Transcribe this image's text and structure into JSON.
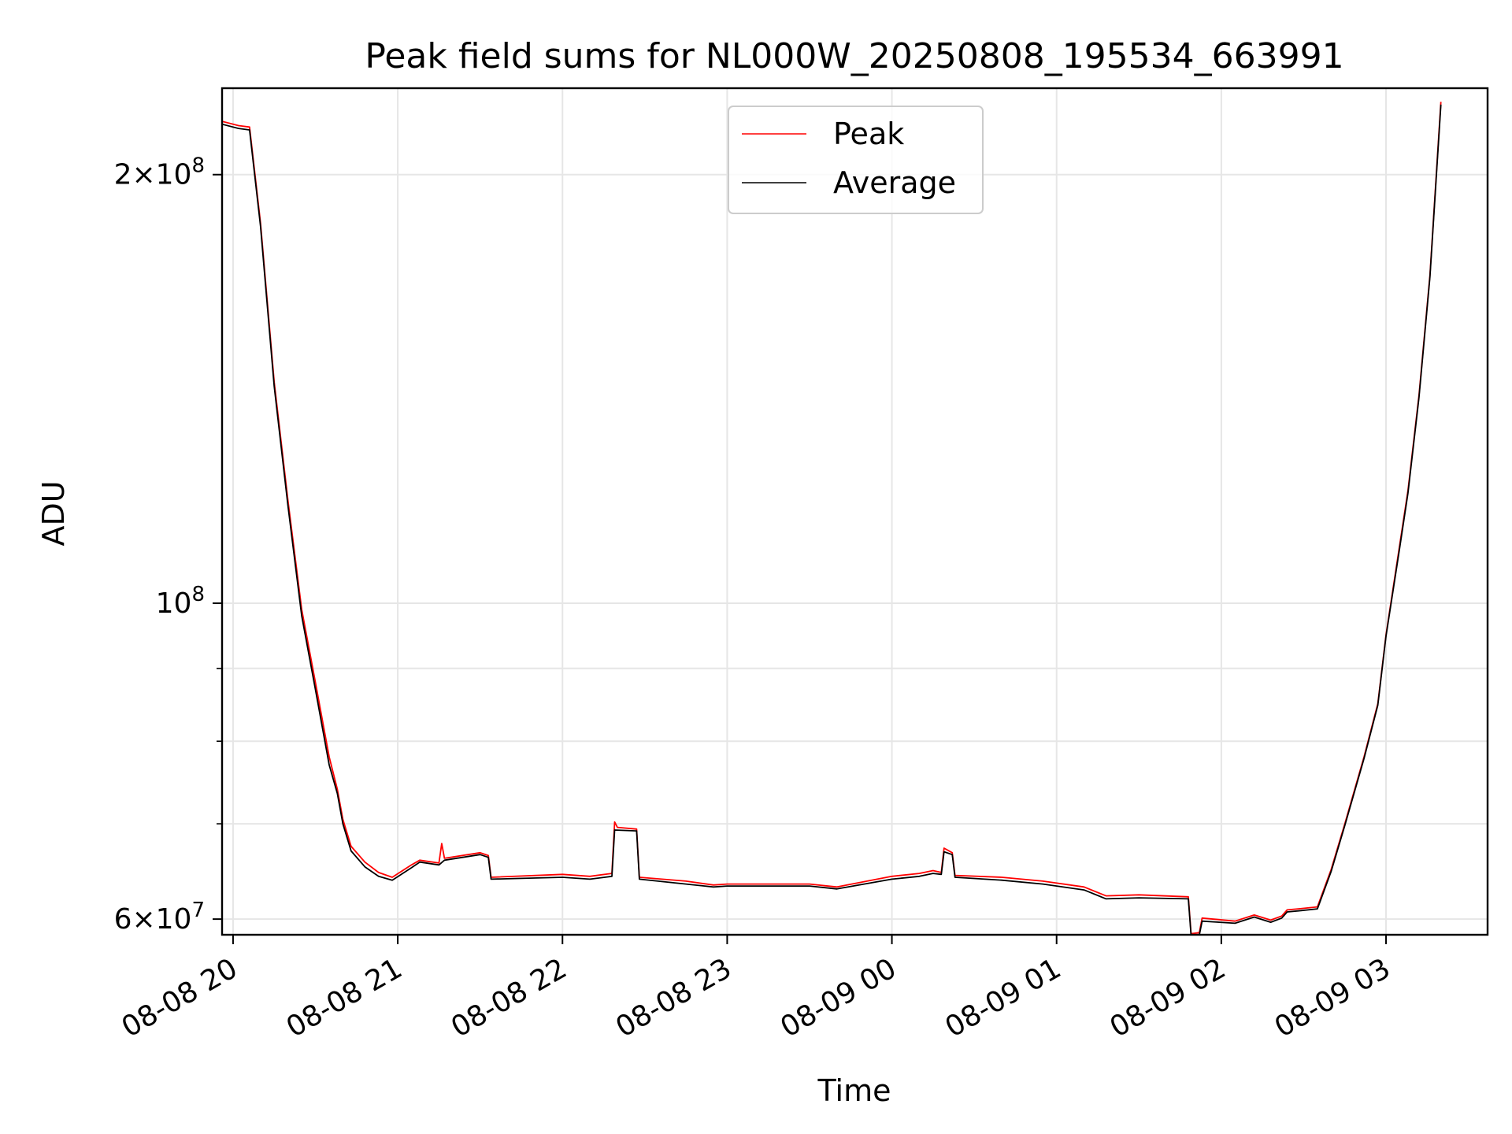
{
  "chart_data": {
    "type": "line",
    "title": "Peak field sums for NL000W_20250808_195534_663991",
    "xlabel": "Time",
    "ylabel": "ADU",
    "yscale": "log",
    "ylim": [
      58500000,
      230000000
    ],
    "xlim": [
      "2025-08-08 19:56",
      "2025-08-09 03:37"
    ],
    "grid": true,
    "legend": "top-center",
    "x_tick_labels": [
      "08-08 20",
      "08-08 21",
      "08-08 22",
      "08-08 23",
      "08-09 00",
      "08-09 01",
      "08-09 02",
      "08-09 03"
    ],
    "x_ticks": [
      "2025-08-08 20:00",
      "2025-08-08 21:00",
      "2025-08-08 22:00",
      "2025-08-08 23:00",
      "2025-08-09 00:00",
      "2025-08-09 01:00",
      "2025-08-09 02:00",
      "2025-08-09 03:00"
    ],
    "y_major_ticks": [
      {
        "value": 200000000,
        "mantissa": "2",
        "exponent": "8"
      },
      {
        "value": 100000000,
        "mantissa": "",
        "exponent": "8"
      },
      {
        "value": 60000000,
        "mantissa": "6",
        "exponent": "7"
      }
    ],
    "y_minor_ticks": [
      70000000,
      80000000,
      90000000
    ],
    "series": [
      {
        "name": "Peak",
        "color": "#ff0000",
        "x": [
          "2025-08-08 19:56",
          "2025-08-08 20:02",
          "2025-08-08 20:06",
          "2025-08-08 20:10",
          "2025-08-08 20:15",
          "2025-08-08 20:20",
          "2025-08-08 20:25",
          "2025-08-08 20:30",
          "2025-08-08 20:35",
          "2025-08-08 20:38",
          "2025-08-08 20:40",
          "2025-08-08 20:43",
          "2025-08-08 20:48",
          "2025-08-08 20:53",
          "2025-08-08 20:58",
          "2025-08-08 21:05",
          "2025-08-08 21:08",
          "2025-08-08 21:15",
          "2025-08-08 21:16",
          "2025-08-08 21:17",
          "2025-08-08 21:30",
          "2025-08-08 21:33",
          "2025-08-08 21:34",
          "2025-08-08 22:00",
          "2025-08-08 22:10",
          "2025-08-08 22:18",
          "2025-08-08 22:19",
          "2025-08-08 22:20",
          "2025-08-08 22:27",
          "2025-08-08 22:28",
          "2025-08-08 22:45",
          "2025-08-08 22:55",
          "2025-08-08 23:00",
          "2025-08-08 23:30",
          "2025-08-08 23:40",
          "2025-08-09 00:00",
          "2025-08-09 00:10",
          "2025-08-09 00:15",
          "2025-08-09 00:18",
          "2025-08-09 00:19",
          "2025-08-09 00:22",
          "2025-08-09 00:23",
          "2025-08-09 00:40",
          "2025-08-09 00:55",
          "2025-08-09 01:10",
          "2025-08-09 01:18",
          "2025-08-09 01:30",
          "2025-08-09 01:48",
          "2025-08-09 01:49",
          "2025-08-09 01:52",
          "2025-08-09 01:53",
          "2025-08-09 02:05",
          "2025-08-09 02:12",
          "2025-08-09 02:18",
          "2025-08-09 02:22",
          "2025-08-09 02:24",
          "2025-08-09 02:28",
          "2025-08-09 02:35",
          "2025-08-09 02:40",
          "2025-08-09 02:45",
          "2025-08-09 02:52",
          "2025-08-09 02:57",
          "2025-08-09 03:00",
          "2025-08-09 03:05",
          "2025-08-09 03:08",
          "2025-08-09 03:12",
          "2025-08-09 03:16",
          "2025-08-09 03:20"
        ],
        "y": [
          218000000,
          216500000,
          216000000,
          185000000,
          143000000,
          118000000,
          99000000,
          88000000,
          78000000,
          74000000,
          70500000,
          67500000,
          65800000,
          64700000,
          64200000,
          65500000,
          66000000,
          65700000,
          67800000,
          66200000,
          66800000,
          66500000,
          64200000,
          64500000,
          64300000,
          64600000,
          70200000,
          69600000,
          69400000,
          64200000,
          63800000,
          63400000,
          63500000,
          63500000,
          63200000,
          64300000,
          64600000,
          64900000,
          64700000,
          67300000,
          66800000,
          64400000,
          64200000,
          63800000,
          63200000,
          62300000,
          62400000,
          62200000,
          58600000,
          58700000,
          60100000,
          59800000,
          60400000,
          59900000,
          60300000,
          60900000,
          61000000,
          61200000,
          65000000,
          70000000,
          78000000,
          85000000,
          95000000,
          110000000,
          120000000,
          140000000,
          170000000,
          225000000
        ]
      },
      {
        "name": "Average",
        "color": "#000000",
        "x": [
          "2025-08-08 19:56",
          "2025-08-08 20:02",
          "2025-08-08 20:06",
          "2025-08-08 20:10",
          "2025-08-08 20:15",
          "2025-08-08 20:20",
          "2025-08-08 20:25",
          "2025-08-08 20:30",
          "2025-08-08 20:35",
          "2025-08-08 20:38",
          "2025-08-08 20:40",
          "2025-08-08 20:43",
          "2025-08-08 20:48",
          "2025-08-08 20:53",
          "2025-08-08 20:58",
          "2025-08-08 21:05",
          "2025-08-08 21:08",
          "2025-08-08 21:15",
          "2025-08-08 21:17",
          "2025-08-08 21:30",
          "2025-08-08 21:33",
          "2025-08-08 21:34",
          "2025-08-08 22:00",
          "2025-08-08 22:10",
          "2025-08-08 22:18",
          "2025-08-08 22:19",
          "2025-08-08 22:27",
          "2025-08-08 22:28",
          "2025-08-08 22:45",
          "2025-08-08 22:55",
          "2025-08-08 23:00",
          "2025-08-08 23:30",
          "2025-08-08 23:40",
          "2025-08-09 00:00",
          "2025-08-09 00:10",
          "2025-08-09 00:15",
          "2025-08-09 00:18",
          "2025-08-09 00:19",
          "2025-08-09 00:22",
          "2025-08-09 00:23",
          "2025-08-09 00:40",
          "2025-08-09 00:55",
          "2025-08-09 01:10",
          "2025-08-09 01:18",
          "2025-08-09 01:30",
          "2025-08-09 01:48",
          "2025-08-09 01:49",
          "2025-08-09 01:52",
          "2025-08-09 01:53",
          "2025-08-09 02:05",
          "2025-08-09 02:12",
          "2025-08-09 02:18",
          "2025-08-09 02:22",
          "2025-08-09 02:24",
          "2025-08-09 02:28",
          "2025-08-09 02:35",
          "2025-08-09 02:40",
          "2025-08-09 02:45",
          "2025-08-09 02:52",
          "2025-08-09 02:57",
          "2025-08-09 03:00",
          "2025-08-09 03:05",
          "2025-08-09 03:08",
          "2025-08-09 03:12",
          "2025-08-09 03:16",
          "2025-08-09 03:20"
        ],
        "y": [
          217000000,
          215500000,
          215000000,
          184000000,
          142000000,
          117000000,
          98000000,
          87000000,
          77000000,
          73500000,
          70000000,
          67000000,
          65300000,
          64300000,
          63900000,
          65200000,
          65800000,
          65500000,
          66000000,
          66600000,
          66300000,
          64000000,
          64200000,
          64000000,
          64300000,
          69300000,
          69200000,
          64000000,
          63500000,
          63200000,
          63300000,
          63300000,
          63000000,
          64000000,
          64300000,
          64600000,
          64500000,
          66900000,
          66600000,
          64200000,
          63900000,
          63500000,
          62900000,
          62000000,
          62100000,
          62000000,
          58400000,
          58500000,
          59800000,
          59600000,
          60200000,
          59700000,
          60100000,
          60700000,
          60800000,
          61000000,
          64800000,
          69800000,
          77800000,
          84800000,
          94800000,
          109500000,
          119500000,
          139500000,
          169500000,
          224000000
        ]
      }
    ]
  }
}
